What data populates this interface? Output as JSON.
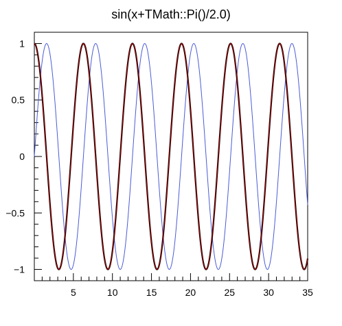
{
  "chart_data": {
    "type": "line",
    "title": "sin(x+TMath::Pi()/2.0)",
    "xlabel": "",
    "ylabel": "",
    "xlim": [
      0,
      35
    ],
    "ylim": [
      -1.1,
      1.1
    ],
    "x_ticks": [
      5,
      10,
      15,
      20,
      25,
      30,
      35
    ],
    "x_tick_labels": [
      "5",
      "10",
      "15",
      "20",
      "25",
      "30",
      "35"
    ],
    "y_ticks": [
      1,
      0.5,
      0,
      -0.5,
      -1
    ],
    "y_tick_labels": [
      "1",
      "0.5",
      "0",
      "−0.5",
      "−1"
    ],
    "grid": false,
    "legend": "none",
    "series": [
      {
        "function": "sin(x)",
        "color": "#4a5bd6",
        "x_range": [
          0,
          35
        ]
      },
      {
        "function": "sin(x+TMath::Pi()/2.0)",
        "color": "#000000",
        "x_range": [
          0,
          35
        ]
      },
      {
        "function": "cos(x)",
        "color": "#b30000",
        "x_range": [
          0,
          35
        ]
      }
    ]
  }
}
